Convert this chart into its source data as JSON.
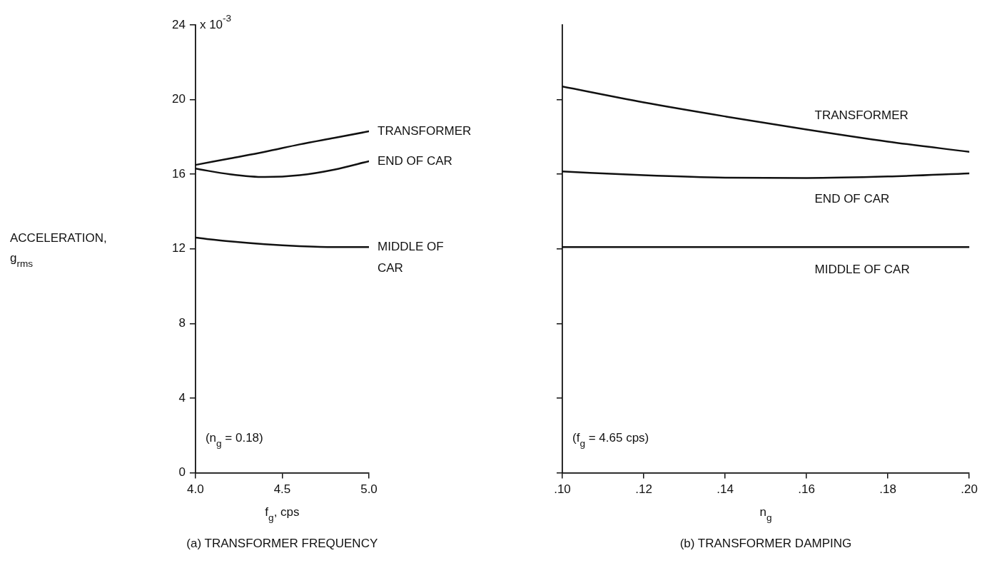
{
  "chart_data": [
    {
      "type": "line",
      "title": "(a) TRANSFORMER FREQUENCY",
      "xlabel": "f$_{g}$, cps",
      "ylabel": "ACCELERATION, g$_{rms}$",
      "annotations": [
        "(n$_{g}$ = 0.18)",
        "x 10$^{-3}$"
      ],
      "x": [
        4.0,
        4.2,
        4.4,
        4.6,
        4.8,
        5.0
      ],
      "xlim": [
        4.0,
        5.0
      ],
      "xticks": [
        {
          "value": 4,
          "label": "4.0"
        },
        4.5,
        {
          "value": 5,
          "label": "5.0"
        }
      ],
      "ylim": [
        0,
        24
      ],
      "yticks": [
        0,
        4,
        8,
        12,
        16,
        20,
        24
      ],
      "series": [
        {
          "name": "TRANSFORMER",
          "color": "#111111",
          "values": [
            16.5,
            16.85,
            17.2,
            17.6,
            17.95,
            18.3
          ]
        },
        {
          "name": "END OF CAR",
          "color": "#111111",
          "values": [
            16.3,
            16.0,
            15.85,
            15.95,
            16.25,
            16.7
          ]
        },
        {
          "name": "MIDDLE OF CAR",
          "color": "#111111",
          "values": [
            12.6,
            12.4,
            12.25,
            12.15,
            12.1,
            12.1
          ]
        }
      ]
    },
    {
      "type": "line",
      "title": "(b) TRANSFORMER DAMPING",
      "xlabel": "n$_{g}$",
      "annotations": [
        "(f$_{g}$ = 4.65 cps)"
      ],
      "x": [
        0.1,
        0.12,
        0.14,
        0.16,
        0.18,
        0.2
      ],
      "xlim": [
        0.1,
        0.2
      ],
      "xticks": [
        {
          "value": 0.1,
          "label": ".10"
        },
        {
          "value": 0.12,
          "label": ".12"
        },
        {
          "value": 0.14,
          "label": ".14"
        },
        {
          "value": 0.16,
          "label": ".16"
        },
        {
          "value": 0.18,
          "label": ".18"
        },
        {
          "value": 0.2,
          "label": ".20"
        }
      ],
      "ylim": [
        0,
        24
      ],
      "yticks": [
        {
          "value": 0,
          "label": null
        },
        {
          "value": 4,
          "label": null
        },
        {
          "value": 8,
          "label": null
        },
        {
          "value": 12,
          "label": null
        },
        {
          "value": 16,
          "label": null
        },
        {
          "value": 20,
          "label": null
        }
      ],
      "tick_labels": "x",
      "series": [
        {
          "name": "TRANSFORMER",
          "color": "#111111",
          "values": [
            20.7,
            19.85,
            19.1,
            18.4,
            17.75,
            17.2
          ]
        },
        {
          "name": "END OF CAR",
          "color": "#111111",
          "values": [
            16.15,
            15.95,
            15.82,
            15.8,
            15.88,
            16.05
          ]
        },
        {
          "name": "MIDDLE OF CAR",
          "color": "#111111",
          "values": [
            12.1,
            12.1,
            12.1,
            12.1,
            12.1,
            12.1
          ]
        }
      ]
    }
  ]
}
